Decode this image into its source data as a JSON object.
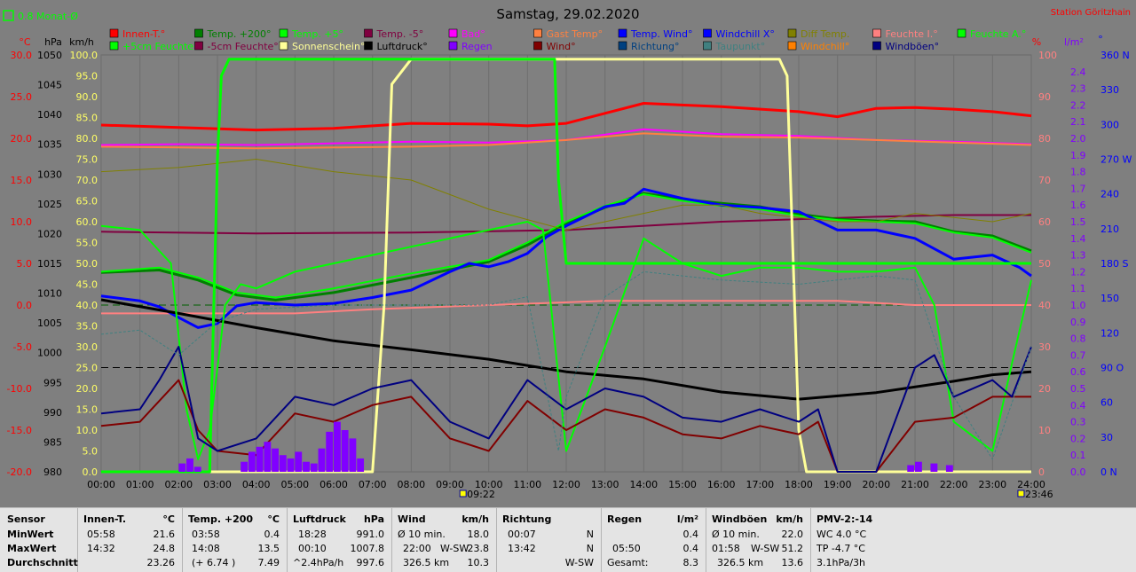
{
  "header": {
    "title": "Samstag, 29.02.2020",
    "station": "Station Göritzhain",
    "monthly_avg_label": "0.8 Monat-Ø"
  },
  "axis_units": {
    "temp": "°C",
    "pressure": "hPa",
    "wind": "km/h",
    "percent": "%",
    "radiation": "l/m²",
    "direction": "°"
  },
  "legend_row1": [
    {
      "label": "Innen-T.°",
      "color": "#ff0000"
    },
    {
      "label": "Temp. +200°",
      "color": "#008000"
    },
    {
      "label": "Temp. +5°",
      "color": "#00ff00"
    },
    {
      "label": "Temp. -5°",
      "color": "#800040"
    },
    {
      "label": "Bad°",
      "color": "#ff00ff"
    },
    {
      "label": "Gast Temp°",
      "color": "#ff8040"
    },
    {
      "label": "Temp. Wind°",
      "color": "#0000ff"
    },
    {
      "label": "Windchill X°",
      "color": "#0000ff"
    },
    {
      "label": "Diff Temp.",
      "color": "#808000"
    },
    {
      "label": "Feuchte I.°",
      "color": "#ff8080"
    },
    {
      "label": "Feuchte A.°",
      "color": "#00ff00"
    }
  ],
  "legend_row2": [
    {
      "label": "+5cm Feuchte°",
      "color": "#00ff00"
    },
    {
      "label": "-5cm Feuchte°",
      "color": "#800040"
    },
    {
      "label": "Sonnenschein°",
      "color": "#ffff99"
    },
    {
      "label": "Luftdruck°",
      "color": "#000000"
    },
    {
      "label": "Regen",
      "color": "#8000ff"
    },
    {
      "label": "Wind°",
      "color": "#800000"
    },
    {
      "label": "Richtung°",
      "color": "#004080"
    },
    {
      "label": "Taupunkt°",
      "color": "#408080"
    },
    {
      "label": "Windchill°",
      "color": "#ff8000"
    },
    {
      "label": "Windböen°",
      "color": "#000080"
    }
  ],
  "chart_data": {
    "type": "line",
    "title": "Samstag, 29.02.2020",
    "x_ticks": [
      "00:00",
      "01:00",
      "02:00",
      "03:00",
      "04:00",
      "05:00",
      "06:00",
      "07:00",
      "08:00",
      "09:00",
      "10:00",
      "11:00",
      "12:00",
      "13:00",
      "14:00",
      "15:00",
      "16:00",
      "17:00",
      "18:00",
      "19:00",
      "20:00",
      "21:00",
      "22:00",
      "23:00",
      "24:00"
    ],
    "x_markers": [
      {
        "label": "09:22",
        "hour": 9.37
      },
      {
        "label": "23:46",
        "hour": 23.77
      }
    ],
    "axes": {
      "temp_c": {
        "range": [
          -20,
          30
        ],
        "ticks": [
          "30.0",
          "25.0",
          "20.0",
          "15.0",
          "10.0",
          "5.0",
          "0.0",
          "-5.0",
          "-10.0",
          "-15.0",
          "-20.0"
        ],
        "color": "#ff0000"
      },
      "pressure_hpa": {
        "range": [
          980,
          1050
        ],
        "ticks": [
          "1050",
          "1045",
          "1040",
          "1035",
          "1030",
          "1025",
          "1020",
          "1015",
          "1010",
          "1005",
          "1000",
          "995",
          "990",
          "985",
          "980"
        ]
      },
      "wind_kmh": {
        "range": [
          0,
          100
        ],
        "ticks": [
          "100.0",
          "95.0",
          "90.0",
          "85.0",
          "80.0",
          "75.0",
          "70.0",
          "65.0",
          "60.0",
          "55.0",
          "50.0",
          "45.0",
          "40.0",
          "35.0",
          "30.0",
          "25.0",
          "20.0",
          "15.0",
          "10.0",
          "5.0",
          "0.0"
        ],
        "color": "#ffff00"
      },
      "humidity_pct": {
        "range": [
          0,
          100
        ],
        "ticks": [
          "100",
          "90",
          "80",
          "70",
          "60",
          "50",
          "40",
          "30",
          "20",
          "10",
          "0"
        ],
        "color": "#ff8080"
      },
      "rain_l_m2": {
        "range": [
          0,
          2.5
        ],
        "ticks": [
          "2.4",
          "2.3",
          "2.2",
          "2.1",
          "2.0",
          "1.9",
          "1.8",
          "1.7",
          "1.6",
          "1.5",
          "1.4",
          "1.3",
          "1.2",
          "1.1",
          "1.0",
          "0.9",
          "0.8",
          "0.7",
          "0.6",
          "0.5",
          "0.4",
          "0.3",
          "0.2",
          "0.1",
          "0.0"
        ],
        "color": "#8000ff"
      },
      "direction_deg": {
        "range": [
          0,
          360
        ],
        "ticks": [
          "360 N",
          "330",
          "300",
          "270 W",
          "240",
          "210",
          "180 S",
          "150",
          "120",
          "90 O",
          "60",
          "30",
          "0 N"
        ],
        "color": "#0000ff"
      }
    },
    "series": [
      {
        "name": "Innen-T.°",
        "axis": "temp_c",
        "color": "#ff0000",
        "width": 3,
        "x": [
          0,
          2,
          4,
          6,
          8,
          10,
          11,
          12,
          14,
          16,
          18,
          19,
          20,
          21,
          22,
          23,
          24
        ],
        "y": [
          21.6,
          21.3,
          21.0,
          21.2,
          21.8,
          21.7,
          21.5,
          21.8,
          24.2,
          23.8,
          23.2,
          22.6,
          23.6,
          23.7,
          23.5,
          23.2,
          22.7
        ]
      },
      {
        "name": "Bad°",
        "axis": "temp_c",
        "color": "#ff00ff",
        "width": 2,
        "x": [
          0,
          2,
          4,
          6,
          8,
          10,
          12,
          14,
          15,
          16,
          18,
          20,
          22,
          24
        ],
        "y": [
          19.2,
          19.3,
          19.2,
          19.4,
          19.6,
          19.5,
          19.8,
          21.1,
          20.8,
          20.5,
          20.3,
          19.8,
          19.6,
          19.3
        ]
      },
      {
        "name": "Gast Temp°",
        "axis": "temp_c",
        "color": "#ff8040",
        "width": 2,
        "x": [
          0,
          2,
          4,
          6,
          8,
          10,
          12,
          14,
          16,
          18,
          20,
          22,
          24
        ],
        "y": [
          19.0,
          18.9,
          18.8,
          18.9,
          19.0,
          19.2,
          19.8,
          20.6,
          20.2,
          20.1,
          19.8,
          19.5,
          19.2
        ]
      },
      {
        "name": "Feuchte I.°",
        "axis": "humidity_pct",
        "color": "#ff8080",
        "width": 2,
        "x": [
          0,
          3,
          5,
          7,
          10,
          13,
          16,
          19,
          21,
          22,
          24
        ],
        "y": [
          38,
          38,
          38,
          39,
          40,
          41,
          41,
          41,
          40,
          40,
          40
        ]
      },
      {
        "name": "Temp. -5°",
        "axis": "temp_c",
        "color": "#800040",
        "width": 2,
        "x": [
          0,
          4,
          8,
          12,
          16,
          20,
          22,
          24
        ],
        "y": [
          8.8,
          8.6,
          8.7,
          9.0,
          10.0,
          10.6,
          10.8,
          10.8
        ]
      },
      {
        "name": "Temp. +200°",
        "axis": "temp_c",
        "color": "#008000",
        "width": 3,
        "x": [
          0,
          1.5,
          2.5,
          3.5,
          4.5,
          6,
          8,
          10,
          11,
          12,
          13,
          14,
          15,
          16,
          17,
          18,
          19,
          20,
          21,
          22,
          23,
          24
        ],
        "y": [
          3.9,
          4.2,
          3.0,
          1.2,
          0.6,
          1.5,
          3.3,
          5.2,
          7.2,
          9.8,
          11.7,
          13.4,
          12.7,
          12.2,
          11.8,
          10.9,
          10.3,
          10.1,
          10.0,
          8.8,
          8.3,
          6.5
        ]
      },
      {
        "name": "Temp. +5°",
        "axis": "temp_c",
        "color": "#00ff00",
        "width": 2,
        "x": [
          0,
          1.5,
          2.5,
          3.5,
          4.5,
          6,
          8,
          10,
          11,
          12,
          13,
          14,
          15,
          16,
          17,
          18,
          19,
          20,
          21,
          22,
          23,
          24
        ],
        "y": [
          4.0,
          4.5,
          3.3,
          1.5,
          0.9,
          2.0,
          3.8,
          5.4,
          7.5,
          10.0,
          11.9,
          13.3,
          12.5,
          11.9,
          11.5,
          10.7,
          10.2,
          10.0,
          9.8,
          8.7,
          8.1,
          6.3
        ]
      },
      {
        "name": "Temp. Wind°",
        "axis": "temp_c",
        "color": "#0000ff",
        "width": 3,
        "x": [
          0,
          1,
          1.5,
          2,
          2.5,
          3,
          3.5,
          4,
          5,
          6,
          7,
          8,
          9,
          9.5,
          10,
          10.5,
          11,
          11.5,
          12,
          13,
          13.5,
          14,
          15,
          16,
          17,
          18,
          19,
          20,
          21,
          22,
          23,
          23.7,
          24
        ],
        "y": [
          1.1,
          0.5,
          -0.2,
          -1.5,
          -2.7,
          -2.2,
          -0.1,
          0.3,
          0.0,
          0.2,
          0.9,
          1.8,
          4.0,
          5.0,
          4.6,
          5.2,
          6.2,
          8.2,
          9.5,
          11.8,
          12.2,
          13.9,
          12.8,
          12.0,
          11.7,
          11.2,
          9.0,
          9.0,
          8.0,
          5.5,
          6.0,
          4.5,
          3.5
        ]
      },
      {
        "name": "Diff Temp.",
        "axis": "wind_kmh",
        "color": "#808000",
        "width": 1,
        "x": [
          0,
          2,
          4,
          6,
          8,
          10,
          12,
          13,
          14,
          15,
          16,
          17,
          18,
          19,
          20,
          21,
          22,
          23,
          24
        ],
        "y": [
          72,
          73,
          75,
          72,
          70,
          63,
          58,
          60,
          62,
          64,
          64,
          62,
          61,
          60,
          60,
          62,
          61,
          60,
          62
        ]
      },
      {
        "name": "Luftdruck°",
        "axis": "pressure_hpa",
        "color": "#000000",
        "width": 3,
        "x": [
          0,
          2,
          4,
          6,
          8,
          10,
          12,
          14,
          16,
          18,
          20,
          22,
          23,
          24
        ],
        "y": [
          1008.9,
          1006.6,
          1004.2,
          1002.0,
          1000.5,
          998.9,
          996.8,
          995.6,
          993.4,
          992.2,
          993.3,
          995.2,
          996.3,
          996.8
        ]
      },
      {
        "name": "Feuchte A.°",
        "axis": "humidity_pct",
        "color": "#00ff00",
        "width": 2,
        "x": [
          0,
          1,
          1.8,
          2.2,
          2.5,
          2.8,
          3.2,
          3.6,
          4,
          5,
          6,
          7,
          8,
          9,
          10,
          11,
          11.4,
          12,
          13,
          14,
          15,
          16,
          17,
          18,
          19,
          20,
          21,
          21.5,
          22,
          23,
          23.5,
          24
        ],
        "y": [
          59,
          58,
          50,
          15,
          3,
          10,
          40,
          45,
          44,
          48,
          50,
          52,
          54,
          56,
          58,
          60,
          58,
          5,
          30,
          56,
          50,
          47,
          49,
          49,
          48,
          48,
          49,
          40,
          12,
          5,
          26,
          46
        ]
      },
      {
        "name": "Sonnenschein°",
        "axis": "wind_kmh",
        "color": "#ffff99",
        "width": 3,
        "x": [
          0,
          6.9,
          7.0,
          7.3,
          7.5,
          8,
          10,
          12,
          15,
          17.5,
          17.7,
          18,
          18.2,
          24
        ],
        "y": [
          0,
          0,
          0,
          40,
          93,
          99,
          99,
          99,
          99,
          99,
          95,
          10,
          0,
          0
        ]
      },
      {
        "name": "+5cm Feuchte°",
        "axis": "wind_kmh",
        "color": "#00ff00",
        "width": 3,
        "x": [
          0,
          2.8,
          3.0,
          3.1,
          3.3,
          10,
          11.7,
          11.8,
          12,
          24
        ],
        "y": [
          0,
          0,
          75,
          95,
          99,
          99,
          99,
          70,
          50,
          50
        ]
      },
      {
        "name": "Wind°",
        "axis": "wind_kmh",
        "color": "#800000",
        "width": 2,
        "x": [
          0,
          1,
          2,
          2.5,
          3,
          4,
          5,
          6,
          7,
          8,
          9,
          10,
          11,
          12,
          13,
          14,
          15,
          16,
          17,
          18,
          18.5,
          19,
          20,
          21,
          22,
          23,
          24
        ],
        "y": [
          11,
          12,
          22,
          10,
          5,
          4,
          14,
          12,
          16,
          18,
          8,
          5,
          17,
          10,
          15,
          13,
          9,
          8,
          11,
          9,
          12,
          0,
          0,
          12,
          13,
          18,
          18
        ]
      },
      {
        "name": "Windböen°",
        "axis": "wind_kmh",
        "color": "#000080",
        "width": 2,
        "x": [
          0,
          1,
          1.5,
          2,
          2.5,
          3,
          4,
          5,
          6,
          7,
          8,
          9,
          10,
          11,
          12,
          13,
          14,
          15,
          16,
          17,
          18,
          18.5,
          19,
          20,
          21,
          21.5,
          22,
          23,
          23.5,
          24
        ],
        "y": [
          14,
          15,
          22,
          30,
          8,
          5,
          8,
          18,
          16,
          20,
          22,
          12,
          8,
          22,
          15,
          20,
          18,
          13,
          12,
          15,
          12,
          15,
          0,
          0,
          25,
          28,
          18,
          22,
          18,
          30
        ]
      },
      {
        "name": "Taupunkt°",
        "axis": "wind_kmh",
        "color": "#408080",
        "width": 1,
        "x": [
          0,
          1,
          2,
          3,
          4,
          6,
          8,
          10,
          11,
          11.8,
          12,
          13,
          14,
          16,
          18,
          20,
          21,
          22,
          23,
          24
        ],
        "y": [
          33,
          34,
          28,
          36,
          39,
          40,
          40,
          40,
          42,
          5,
          18,
          42,
          48,
          46,
          45,
          47,
          46,
          18,
          3,
          30
        ]
      }
    ],
    "rain_bars_l_m2": {
      "hours": [
        2.0,
        2.2,
        2.4,
        3.6,
        3.8,
        4.0,
        4.2,
        4.4,
        4.6,
        4.8,
        5.0,
        5.2,
        5.4,
        5.6,
        5.8,
        6.0,
        6.2,
        6.4,
        6.6,
        20.8,
        21.0,
        21.4,
        21.8
      ],
      "values": [
        0.05,
        0.08,
        0.03,
        0.06,
        0.12,
        0.15,
        0.18,
        0.14,
        0.1,
        0.08,
        0.12,
        0.06,
        0.05,
        0.14,
        0.24,
        0.3,
        0.25,
        0.2,
        0.08,
        0.04,
        0.06,
        0.05,
        0.04
      ]
    }
  },
  "footer": {
    "sensor": {
      "title": "Sensor",
      "rows": [
        "MinWert",
        "MaxWert",
        "Durchschnitt"
      ]
    },
    "innen": {
      "title": "Innen-T.",
      "unit": "°C",
      "rows": [
        [
          "05:58",
          "21.6"
        ],
        [
          "14:32",
          "24.8"
        ],
        [
          "",
          "23.26"
        ]
      ]
    },
    "temp200": {
      "title": "Temp. +200",
      "unit": "°C",
      "rows": [
        [
          "03:58",
          "0.4"
        ],
        [
          "14:08",
          "13.5"
        ],
        [
          "(+ 6.74 )",
          "7.49"
        ]
      ]
    },
    "luftdruck": {
      "title": "Luftdruck",
      "unit": "hPa",
      "rows": [
        [
          "18:28",
          "991.0"
        ],
        [
          "00:10",
          "1007.8"
        ],
        [
          "^2.4hPa/h",
          "997.6"
        ]
      ]
    },
    "wind": {
      "title": "Wind",
      "unit": "km/h",
      "rows": [
        [
          "Ø 10 min.",
          "",
          "18.0"
        ],
        [
          "22:00",
          "W-SW",
          "23.8"
        ],
        [
          "326.5 km",
          "",
          "10.3"
        ]
      ]
    },
    "richtung": {
      "title": "Richtung",
      "rows": [
        [
          "00:07",
          "N"
        ],
        [
          "13:42",
          "N"
        ],
        [
          "",
          "W-SW"
        ]
      ]
    },
    "regen": {
      "title": "Regen",
      "unit": "l/m²",
      "rows": [
        [
          "",
          "0.4"
        ],
        [
          "05:50",
          "0.4"
        ],
        [
          "Gesamt:",
          "8.3"
        ]
      ]
    },
    "windboen": {
      "title": "Windböen",
      "unit": "km/h",
      "rows": [
        [
          "Ø 10 min.",
          "",
          "22.0"
        ],
        [
          "01:58",
          "W-SW",
          "51.2"
        ],
        [
          "326.5 km",
          "",
          "13.6"
        ]
      ]
    },
    "pmv": {
      "title": "PMV-2:-14",
      "rows": [
        "WC 4.0 °C",
        "TP -4.7 °C",
        "3.1hPa/3h"
      ]
    }
  }
}
